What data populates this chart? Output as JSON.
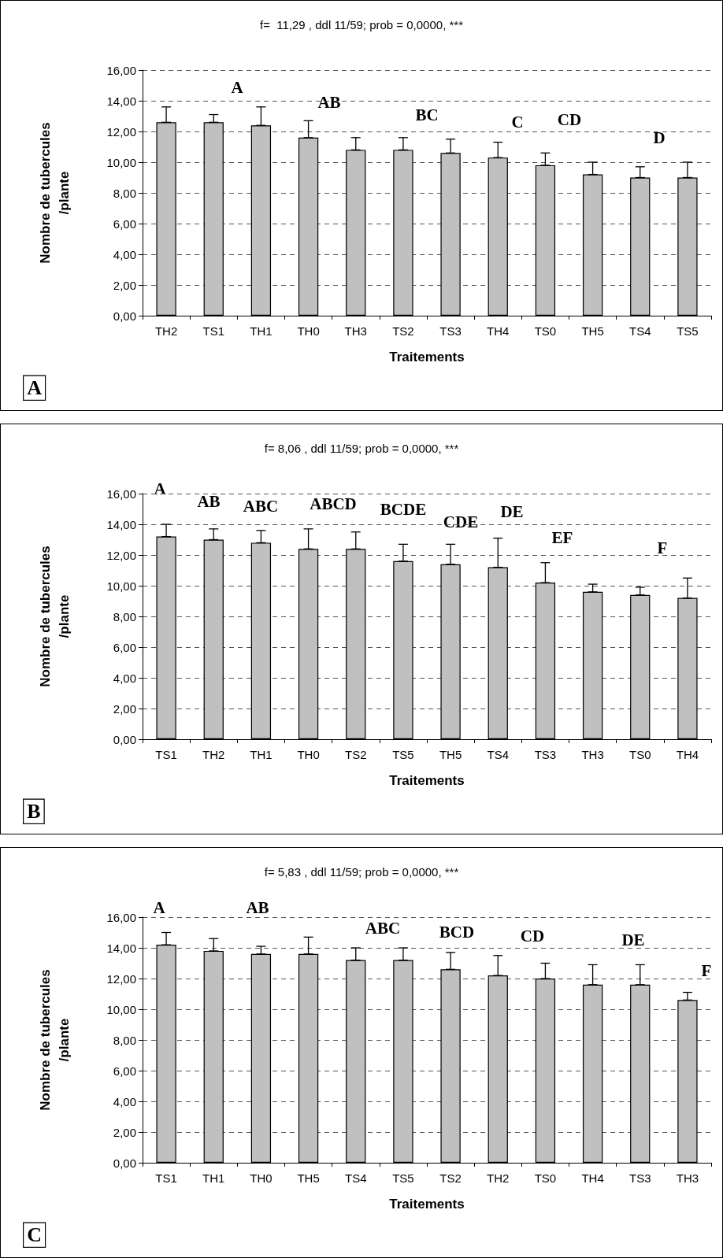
{
  "chart_data": [
    {
      "type": "bar",
      "title": "f=  11,29 , ddl 11/59; prob = 0,0000, ***",
      "xlabel": "Traitements",
      "ylabel": "Nombre de tubercules\n/plante",
      "categories": [
        "TH2",
        "TS1",
        "TH1",
        "TH0",
        "TH3",
        "TS2",
        "TS3",
        "TH4",
        "TS0",
        "TH5",
        "TS4",
        "TS5"
      ],
      "values": [
        12.6,
        12.6,
        12.4,
        11.6,
        10.8,
        10.8,
        10.6,
        10.3,
        9.8,
        9.2,
        9.0,
        9.0
      ],
      "errors": [
        [
          12.6,
          13.6
        ],
        [
          12.6,
          13.1
        ],
        [
          12.4,
          13.6
        ],
        [
          11.6,
          12.7
        ],
        [
          10.8,
          11.6
        ],
        [
          10.8,
          11.6
        ],
        [
          10.6,
          11.5
        ],
        [
          10.3,
          11.3
        ],
        [
          9.8,
          10.6
        ],
        [
          9.2,
          10.0
        ],
        [
          9.0,
          9.7
        ],
        [
          9.0,
          10.0
        ]
      ],
      "color": "#c0c0c0",
      "ylim": [
        0,
        16
      ],
      "yticks": [
        {
          "value": 0,
          "label": "0,00"
        },
        {
          "value": 2,
          "label": "2,00"
        },
        {
          "value": 4,
          "label": "4,00"
        },
        {
          "value": 6,
          "label": "6,00"
        },
        {
          "value": 8,
          "label": "8,00"
        },
        {
          "value": 10,
          "label": "10,00"
        },
        {
          "value": 12,
          "label": "12,00"
        },
        {
          "value": 14,
          "label": "14,00"
        },
        {
          "value": 16,
          "label": "16,00"
        }
      ],
      "grid": "y",
      "annotations": [
        "A",
        "A",
        "AB",
        "BC",
        "C",
        "CD",
        "D"
      ]
    },
    {
      "type": "bar",
      "title": "f= 8,06 , ddl 11/59; prob = 0,0000, ***",
      "xlabel": "Traitements",
      "ylabel": "Nombre de tubercules\n/plante",
      "categories": [
        "TS1",
        "TH2",
        "TH1",
        "TH0",
        "TS2",
        "TS5",
        "TH5",
        "TS4",
        "TS3",
        "TH3",
        "TS0",
        "TH4"
      ],
      "values": [
        13.2,
        13.0,
        12.8,
        12.4,
        12.4,
        11.6,
        11.4,
        11.2,
        10.2,
        9.6,
        9.4,
        9.2
      ],
      "errors": [
        [
          13.2,
          14.0
        ],
        [
          13.0,
          13.7
        ],
        [
          12.8,
          13.6
        ],
        [
          12.4,
          13.7
        ],
        [
          12.4,
          13.5
        ],
        [
          11.6,
          12.7
        ],
        [
          11.4,
          12.7
        ],
        [
          11.2,
          13.1
        ],
        [
          10.2,
          11.5
        ],
        [
          9.6,
          10.1
        ],
        [
          9.4,
          9.9
        ],
        [
          9.2,
          10.5
        ]
      ],
      "color": "#c0c0c0",
      "ylim": [
        0,
        16
      ],
      "yticks": [
        {
          "value": 0,
          "label": "0,00"
        },
        {
          "value": 2,
          "label": "2,00"
        },
        {
          "value": 4,
          "label": "4,00"
        },
        {
          "value": 6,
          "label": "6,00"
        },
        {
          "value": 8,
          "label": "8,00"
        },
        {
          "value": 10,
          "label": "10,00"
        },
        {
          "value": 12,
          "label": "12,00"
        },
        {
          "value": 14,
          "label": "14,00"
        },
        {
          "value": 16,
          "label": "16,00"
        }
      ],
      "grid": "y",
      "annotations": [
        "B",
        "A",
        "AB",
        "ABC",
        "ABCD",
        "BCDE",
        "CDE",
        "DE",
        "EF",
        "F"
      ]
    },
    {
      "type": "bar",
      "title": "f= 5,83 , ddl 11/59; prob = 0,0000, ***",
      "xlabel": "Traitements",
      "ylabel": "Nombre de tubercules\n/plante",
      "categories": [
        "TS1",
        "TH1",
        "TH0",
        "TH5",
        "TS4",
        "TS5",
        "TS2",
        "TH2",
        "TS0",
        "TH4",
        "TS3",
        "TH3"
      ],
      "values": [
        14.2,
        13.8,
        13.6,
        13.6,
        13.2,
        13.2,
        12.6,
        12.2,
        12.0,
        11.6,
        11.6,
        10.6
      ],
      "errors": [
        [
          14.2,
          15.0
        ],
        [
          13.8,
          14.6
        ],
        [
          13.6,
          14.1
        ],
        [
          13.6,
          14.7
        ],
        [
          13.2,
          14.0
        ],
        [
          13.2,
          14.0
        ],
        [
          12.6,
          13.7
        ],
        [
          12.2,
          13.5
        ],
        [
          12.0,
          13.0
        ],
        [
          11.6,
          12.9
        ],
        [
          11.6,
          12.9
        ],
        [
          10.6,
          11.1
        ]
      ],
      "color": "#c0c0c0",
      "ylim": [
        0,
        16
      ],
      "yticks": [
        {
          "value": 0,
          "label": "0,00"
        },
        {
          "value": 2,
          "label": "2,00"
        },
        {
          "value": 4,
          "label": "4,00"
        },
        {
          "value": 6,
          "label": "6,00"
        },
        {
          "value": 8,
          "label": "8,00"
        },
        {
          "value": 10,
          "label": "10,00"
        },
        {
          "value": 12,
          "label": "12,00"
        },
        {
          "value": 14,
          "label": "14,00"
        },
        {
          "value": 16,
          "label": "16,00"
        }
      ],
      "grid": "y",
      "annotations": [
        "C",
        "A",
        "AB",
        "ABC",
        "BCD",
        "CD",
        "DE",
        "F"
      ]
    }
  ]
}
